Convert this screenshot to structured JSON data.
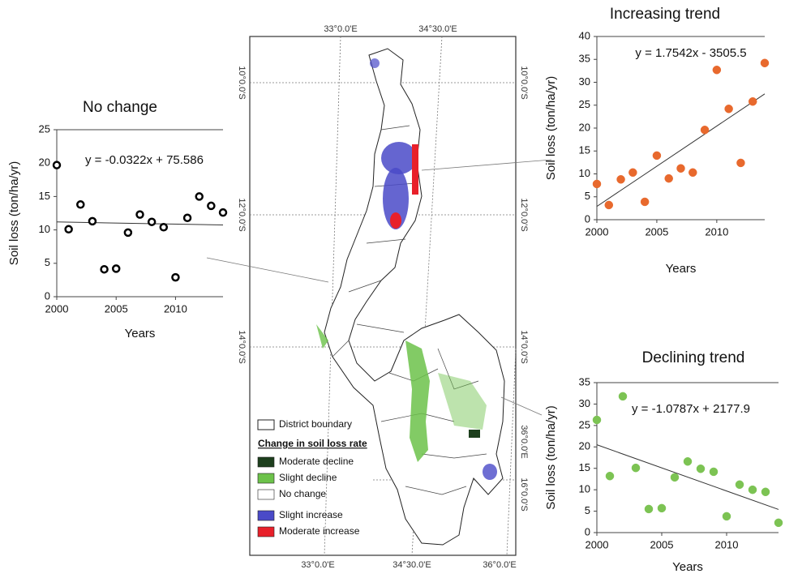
{
  "map": {
    "top_labels": [
      "33°0.0'E",
      "34°30.0'E"
    ],
    "bottom_labels": [
      "33°0.0'E",
      "34°30.0'E",
      "36°0.0'E"
    ],
    "left_labels": [
      "10°0.0'S",
      "12°0.0'S",
      "14°0.0'S",
      "16°0.0'S"
    ],
    "right_labels": [
      "10°0.0'S",
      "12°0.0'S",
      "14°0.0'S",
      "16°0.0'S"
    ],
    "right_extra_label": "36°0.0'E",
    "legend": {
      "boundary": "District boundary",
      "heading": "Change in soil loss rate",
      "items": [
        {
          "label": "Moderate decline",
          "color": "#1d3f1d"
        },
        {
          "label": "Slight decline",
          "color": "#6cc24a"
        },
        {
          "label": "No change",
          "color": "#ffffff"
        },
        {
          "label": "Slight increase",
          "color": "#4a4ac8"
        },
        {
          "label": "Moderate increase",
          "color": "#e8202a"
        }
      ]
    }
  },
  "chart_data": [
    {
      "type": "scatter",
      "title": "No change",
      "annotation": "y = -0.0322x + 75.586",
      "x_label": "Years",
      "y_label": "Soil loss (ton/ha/yr)",
      "marker": "hollow",
      "x": [
        2000,
        2001,
        2002,
        2003,
        2004,
        2005,
        2006,
        2007,
        2008,
        2009,
        2010,
        2011,
        2012,
        2013,
        2014
      ],
      "series": [
        {
          "color": "#000000",
          "values": [
            19.7,
            10.1,
            13.8,
            11.3,
            4.1,
            4.2,
            9.6,
            12.3,
            11.2,
            10.4,
            2.9,
            11.8,
            15.0,
            13.6,
            12.6
          ]
        }
      ],
      "trend": {
        "x": [
          2000,
          2014
        ],
        "values": [
          11.19,
          10.74
        ]
      },
      "xlim": [
        2000,
        2014
      ],
      "xticks": [
        2000,
        2005,
        2010
      ],
      "ylim": [
        0,
        25
      ],
      "yticks": [
        0,
        5,
        10,
        15,
        20,
        25
      ]
    },
    {
      "type": "scatter",
      "title": "Increasing trend",
      "annotation": "y = 1.7542x - 3505.5",
      "x_label": "Years",
      "y_label": "Soil loss (ton/ha/yr)",
      "marker": "filled",
      "x": [
        2000,
        2001,
        2002,
        2003,
        2004,
        2005,
        2006,
        2007,
        2008,
        2009,
        2010,
        2011,
        2012,
        2013,
        2014
      ],
      "series": [
        {
          "color": "#e8692d",
          "values": [
            7.8,
            3.2,
            8.8,
            10.3,
            3.9,
            14.0,
            9.0,
            11.2,
            10.3,
            19.6,
            32.7,
            24.2,
            12.4,
            25.8,
            34.2
          ]
        }
      ],
      "trend": {
        "x": [
          2000,
          2014
        ],
        "values": [
          2.9,
          27.46
        ]
      },
      "xlim": [
        2000,
        2014
      ],
      "xticks": [
        2000,
        2005,
        2010
      ],
      "ylim": [
        0,
        40
      ],
      "yticks": [
        0,
        5,
        10,
        15,
        20,
        25,
        30,
        35,
        40
      ]
    },
    {
      "type": "scatter",
      "title": "Declining trend",
      "annotation": "y = -1.0787x + 2177.9",
      "x_label": "Years",
      "y_label": "Soil loss (ton/ha/yr)",
      "marker": "filled",
      "x": [
        2000,
        2001,
        2002,
        2003,
        2004,
        2005,
        2006,
        2007,
        2008,
        2009,
        2010,
        2011,
        2012,
        2013,
        2014
      ],
      "series": [
        {
          "color": "#7cc353",
          "values": [
            26.3,
            13.2,
            31.8,
            15.1,
            5.5,
            5.7,
            12.9,
            16.6,
            14.9,
            14.2,
            3.8,
            11.2,
            10.0,
            9.5,
            2.3
          ]
        }
      ],
      "trend": {
        "x": [
          2000,
          2014
        ],
        "values": [
          20.5,
          5.4
        ]
      },
      "xlim": [
        2000,
        2014
      ],
      "xticks": [
        2000,
        2005,
        2010
      ],
      "ylim": [
        0,
        35
      ],
      "yticks": [
        0,
        5,
        10,
        15,
        20,
        25,
        30,
        35
      ]
    }
  ]
}
